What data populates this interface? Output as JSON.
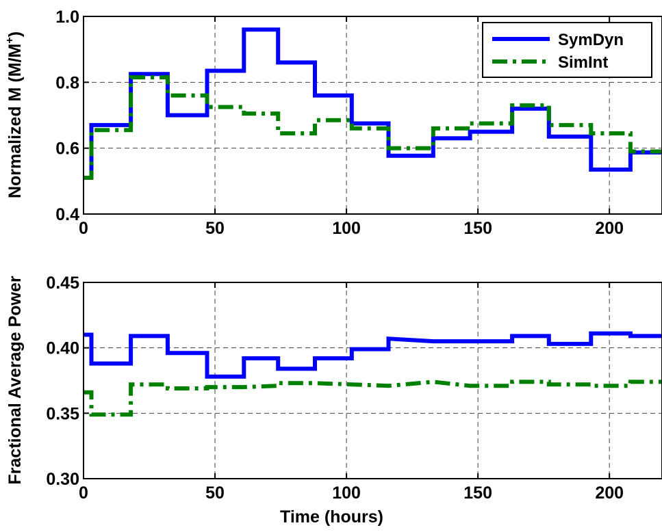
{
  "chart_data": [
    {
      "type": "line",
      "step": true,
      "ylabel": "Normalized M (M/M",
      "ylabel_superscript": "+",
      "ylabel_suffix": ")",
      "xlabel": "",
      "xlim": [
        0,
        220
      ],
      "ylim": [
        0.4,
        1.0
      ],
      "x_ticks": [
        0,
        50,
        100,
        150,
        200
      ],
      "y_ticks": [
        0.4,
        0.6,
        0.8,
        1.0
      ],
      "x_tick_labels": [
        "0",
        "50",
        "100",
        "150",
        "200"
      ],
      "y_tick_labels": [
        "0.4",
        "0.6",
        "0.8",
        "1.0"
      ],
      "grid": true,
      "legend": {
        "position": "top-right",
        "entries": [
          "SymDyn",
          "SimInt"
        ]
      },
      "series": [
        {
          "name": "SymDyn",
          "color": "#0000ff",
          "style": "solid",
          "points": [
            [
              0,
              0.51
            ],
            [
              3,
              0.51
            ],
            [
              3,
              0.67
            ],
            [
              18,
              0.67
            ],
            [
              18,
              0.825
            ],
            [
              32,
              0.825
            ],
            [
              32,
              0.7
            ],
            [
              47,
              0.7
            ],
            [
              47,
              0.835
            ],
            [
              61,
              0.835
            ],
            [
              61,
              0.96
            ],
            [
              74,
              0.96
            ],
            [
              74,
              0.86
            ],
            [
              88,
              0.86
            ],
            [
              88,
              0.76
            ],
            [
              102,
              0.76
            ],
            [
              102,
              0.675
            ],
            [
              116,
              0.675
            ],
            [
              116,
              0.577
            ],
            [
              133,
              0.577
            ],
            [
              133,
              0.63
            ],
            [
              147,
              0.63
            ],
            [
              147,
              0.65
            ],
            [
              163,
              0.65
            ],
            [
              163,
              0.72
            ],
            [
              177,
              0.72
            ],
            [
              177,
              0.635
            ],
            [
              193,
              0.635
            ],
            [
              193,
              0.535
            ],
            [
              208,
              0.535
            ],
            [
              208,
              0.587
            ],
            [
              220,
              0.587
            ]
          ]
        },
        {
          "name": "SimInt",
          "color": "#008000",
          "style": "dashdot",
          "points": [
            [
              0,
              0.51
            ],
            [
              3,
              0.51
            ],
            [
              3,
              0.655
            ],
            [
              18,
              0.655
            ],
            [
              18,
              0.815
            ],
            [
              32,
              0.815
            ],
            [
              32,
              0.76
            ],
            [
              47,
              0.76
            ],
            [
              47,
              0.725
            ],
            [
              61,
              0.725
            ],
            [
              61,
              0.705
            ],
            [
              74,
              0.705
            ],
            [
              74,
              0.645
            ],
            [
              88,
              0.645
            ],
            [
              88,
              0.685
            ],
            [
              102,
              0.685
            ],
            [
              102,
              0.66
            ],
            [
              116,
              0.66
            ],
            [
              116,
              0.6
            ],
            [
              133,
              0.6
            ],
            [
              133,
              0.66
            ],
            [
              147,
              0.66
            ],
            [
              147,
              0.675
            ],
            [
              163,
              0.675
            ],
            [
              163,
              0.73
            ],
            [
              177,
              0.73
            ],
            [
              177,
              0.67
            ],
            [
              193,
              0.67
            ],
            [
              193,
              0.645
            ],
            [
              208,
              0.645
            ],
            [
              208,
              0.59
            ],
            [
              220,
              0.59
            ]
          ]
        }
      ]
    },
    {
      "type": "line",
      "step": true,
      "ylabel": "Fractional Average Power",
      "xlabel": "Time (hours)",
      "xlim": [
        0,
        220
      ],
      "ylim": [
        0.3,
        0.45
      ],
      "x_ticks": [
        0,
        50,
        100,
        150,
        200
      ],
      "y_ticks": [
        0.3,
        0.35,
        0.4,
        0.45
      ],
      "x_tick_labels": [
        "0",
        "50",
        "100",
        "150",
        "200"
      ],
      "y_tick_labels": [
        "0.30",
        "0.35",
        "0.40",
        "0.45"
      ],
      "grid": true,
      "series": [
        {
          "name": "SymDyn",
          "color": "#0000ff",
          "style": "solid",
          "points": [
            [
              0,
              0.41
            ],
            [
              3,
              0.41
            ],
            [
              3,
              0.388
            ],
            [
              18,
              0.388
            ],
            [
              18,
              0.409
            ],
            [
              32,
              0.409
            ],
            [
              32,
              0.396
            ],
            [
              47,
              0.396
            ],
            [
              47,
              0.378
            ],
            [
              61,
              0.378
            ],
            [
              61,
              0.392
            ],
            [
              74,
              0.392
            ],
            [
              74,
              0.384
            ],
            [
              88,
              0.384
            ],
            [
              88,
              0.392
            ],
            [
              102,
              0.392
            ],
            [
              102,
              0.399
            ],
            [
              116,
              0.399
            ],
            [
              116,
              0.407
            ],
            [
              133,
              0.405
            ],
            [
              147,
              0.405
            ],
            [
              163,
              0.405
            ],
            [
              163,
              0.409
            ],
            [
              177,
              0.409
            ],
            [
              177,
              0.403
            ],
            [
              193,
              0.403
            ],
            [
              193,
              0.411
            ],
            [
              208,
              0.411
            ],
            [
              208,
              0.409
            ],
            [
              220,
              0.409
            ]
          ]
        },
        {
          "name": "SimInt",
          "color": "#008000",
          "style": "dashdot",
          "points": [
            [
              0,
              0.366
            ],
            [
              3,
              0.366
            ],
            [
              3,
              0.349
            ],
            [
              18,
              0.349
            ],
            [
              18,
              0.372
            ],
            [
              32,
              0.372
            ],
            [
              32,
              0.369
            ],
            [
              47,
              0.369
            ],
            [
              47,
              0.37
            ],
            [
              61,
              0.37
            ],
            [
              74,
              0.371
            ],
            [
              74,
              0.373
            ],
            [
              88,
              0.373
            ],
            [
              102,
              0.372
            ],
            [
              116,
              0.371
            ],
            [
              116,
              0.371
            ],
            [
              133,
              0.374
            ],
            [
              147,
              0.371
            ],
            [
              163,
              0.371
            ],
            [
              163,
              0.374
            ],
            [
              177,
              0.374
            ],
            [
              177,
              0.372
            ],
            [
              193,
              0.372
            ],
            [
              193,
              0.371
            ],
            [
              208,
              0.371
            ],
            [
              208,
              0.374
            ],
            [
              220,
              0.374
            ]
          ]
        }
      ]
    }
  ]
}
